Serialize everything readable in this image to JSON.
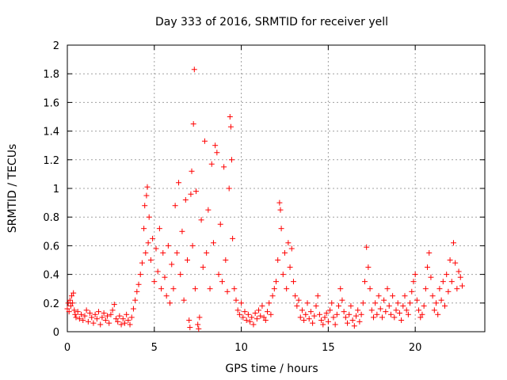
{
  "chart_data": {
    "type": "scatter",
    "title": "Day 333 of 2016, SRMTID for receiver yell",
    "xlabel": "GPS time / hours",
    "ylabel": "SRMTID / TECUs",
    "xlim": [
      0,
      24
    ],
    "ylim": [
      0,
      2
    ],
    "xticks": [
      0,
      5,
      10,
      15,
      20
    ],
    "xtick_labels": [
      "0",
      "5",
      "10",
      "15",
      "20"
    ],
    "yticks": [
      0,
      0.2,
      0.4,
      0.6,
      0.8,
      1,
      1.2,
      1.4,
      1.6,
      1.8,
      2
    ],
    "ytick_labels": [
      "0",
      "0.2",
      "0.4",
      "0.6",
      "0.8",
      "1",
      "1.2",
      "1.4",
      "1.6",
      "1.8",
      "2"
    ],
    "grid": true,
    "marker": "+",
    "color": "#ff0000",
    "series": [
      {
        "name": "SRMTID",
        "points": [
          [
            0.0,
            0.16
          ],
          [
            0.05,
            0.2
          ],
          [
            0.1,
            0.14
          ],
          [
            0.15,
            0.22
          ],
          [
            0.2,
            0.18
          ],
          [
            0.25,
            0.25
          ],
          [
            0.3,
            0.2
          ],
          [
            0.35,
            0.27
          ],
          [
            0.4,
            0.15
          ],
          [
            0.45,
            0.12
          ],
          [
            0.5,
            0.1
          ],
          [
            0.6,
            0.14
          ],
          [
            0.7,
            0.09
          ],
          [
            0.8,
            0.12
          ],
          [
            0.9,
            0.08
          ],
          [
            1.0,
            0.11
          ],
          [
            1.1,
            0.15
          ],
          [
            1.2,
            0.07
          ],
          [
            1.3,
            0.13
          ],
          [
            1.4,
            0.1
          ],
          [
            1.5,
            0.06
          ],
          [
            1.6,
            0.12
          ],
          [
            1.7,
            0.09
          ],
          [
            1.8,
            0.14
          ],
          [
            1.9,
            0.05
          ],
          [
            2.0,
            0.1
          ],
          [
            2.1,
            0.13
          ],
          [
            2.2,
            0.08
          ],
          [
            2.3,
            0.11
          ],
          [
            2.4,
            0.06
          ],
          [
            2.5,
            0.12
          ],
          [
            2.6,
            0.15
          ],
          [
            2.7,
            0.19
          ],
          [
            2.8,
            0.09
          ],
          [
            2.9,
            0.07
          ],
          [
            3.0,
            0.11
          ],
          [
            3.1,
            0.05
          ],
          [
            3.2,
            0.09
          ],
          [
            3.3,
            0.06
          ],
          [
            3.4,
            0.12
          ],
          [
            3.5,
            0.08
          ],
          [
            3.6,
            0.05
          ],
          [
            3.7,
            0.1
          ],
          [
            3.8,
            0.16
          ],
          [
            3.9,
            0.22
          ],
          [
            4.0,
            0.28
          ],
          [
            4.1,
            0.33
          ],
          [
            4.2,
            0.4
          ],
          [
            4.3,
            0.48
          ],
          [
            4.4,
            0.72
          ],
          [
            4.45,
            0.88
          ],
          [
            4.5,
            0.55
          ],
          [
            4.55,
            0.95
          ],
          [
            4.6,
            1.01
          ],
          [
            4.65,
            0.62
          ],
          [
            4.7,
            0.8
          ],
          [
            4.8,
            0.5
          ],
          [
            4.9,
            0.65
          ],
          [
            5.0,
            0.35
          ],
          [
            5.1,
            0.58
          ],
          [
            5.2,
            0.42
          ],
          [
            5.3,
            0.72
          ],
          [
            5.4,
            0.3
          ],
          [
            5.5,
            0.55
          ],
          [
            5.6,
            0.38
          ],
          [
            5.7,
            0.25
          ],
          [
            5.8,
            0.6
          ],
          [
            5.9,
            0.2
          ],
          [
            6.0,
            0.47
          ],
          [
            6.1,
            0.3
          ],
          [
            6.2,
            0.88
          ],
          [
            6.3,
            0.55
          ],
          [
            6.4,
            1.04
          ],
          [
            6.5,
            0.4
          ],
          [
            6.6,
            0.7
          ],
          [
            6.7,
            0.22
          ],
          [
            6.8,
            0.92
          ],
          [
            6.9,
            0.5
          ],
          [
            7.0,
            0.08
          ],
          [
            7.05,
            0.03
          ],
          [
            7.1,
            0.96
          ],
          [
            7.15,
            1.12
          ],
          [
            7.2,
            0.6
          ],
          [
            7.25,
            1.45
          ],
          [
            7.3,
            1.83
          ],
          [
            7.35,
            0.3
          ],
          [
            7.4,
            0.98
          ],
          [
            7.5,
            0.05
          ],
          [
            7.55,
            0.02
          ],
          [
            7.6,
            0.1
          ],
          [
            7.7,
            0.78
          ],
          [
            7.8,
            0.45
          ],
          [
            7.9,
            1.33
          ],
          [
            8.0,
            0.55
          ],
          [
            8.1,
            0.85
          ],
          [
            8.2,
            0.3
          ],
          [
            8.3,
            1.17
          ],
          [
            8.4,
            0.62
          ],
          [
            8.5,
            1.3
          ],
          [
            8.6,
            1.25
          ],
          [
            8.7,
            0.4
          ],
          [
            8.8,
            0.75
          ],
          [
            8.9,
            0.35
          ],
          [
            9.0,
            1.15
          ],
          [
            9.1,
            0.5
          ],
          [
            9.2,
            0.28
          ],
          [
            9.3,
            1.0
          ],
          [
            9.35,
            1.5
          ],
          [
            9.4,
            1.43
          ],
          [
            9.45,
            1.2
          ],
          [
            9.5,
            0.65
          ],
          [
            9.6,
            0.3
          ],
          [
            9.7,
            0.22
          ],
          [
            9.8,
            0.15
          ],
          [
            9.9,
            0.12
          ],
          [
            10.0,
            0.2
          ],
          [
            10.1,
            0.1
          ],
          [
            10.2,
            0.14
          ],
          [
            10.3,
            0.08
          ],
          [
            10.4,
            0.12
          ],
          [
            10.5,
            0.07
          ],
          [
            10.6,
            0.1
          ],
          [
            10.7,
            0.05
          ],
          [
            10.8,
            0.13
          ],
          [
            10.9,
            0.09
          ],
          [
            11.0,
            0.15
          ],
          [
            11.1,
            0.11
          ],
          [
            11.2,
            0.18
          ],
          [
            11.3,
            0.1
          ],
          [
            11.4,
            0.08
          ],
          [
            11.5,
            0.14
          ],
          [
            11.6,
            0.2
          ],
          [
            11.7,
            0.12
          ],
          [
            11.8,
            0.25
          ],
          [
            11.9,
            0.3
          ],
          [
            12.0,
            0.35
          ],
          [
            12.1,
            0.5
          ],
          [
            12.2,
            0.9
          ],
          [
            12.25,
            0.85
          ],
          [
            12.3,
            0.72
          ],
          [
            12.4,
            0.4
          ],
          [
            12.5,
            0.55
          ],
          [
            12.6,
            0.3
          ],
          [
            12.7,
            0.62
          ],
          [
            12.8,
            0.45
          ],
          [
            12.9,
            0.58
          ],
          [
            13.0,
            0.35
          ],
          [
            13.1,
            0.25
          ],
          [
            13.2,
            0.18
          ],
          [
            13.3,
            0.22
          ],
          [
            13.4,
            0.1
          ],
          [
            13.5,
            0.15
          ],
          [
            13.6,
            0.08
          ],
          [
            13.7,
            0.12
          ],
          [
            13.8,
            0.2
          ],
          [
            13.9,
            0.09
          ],
          [
            14.0,
            0.14
          ],
          [
            14.1,
            0.06
          ],
          [
            14.2,
            0.11
          ],
          [
            14.3,
            0.18
          ],
          [
            14.4,
            0.25
          ],
          [
            14.5,
            0.12
          ],
          [
            14.6,
            0.08
          ],
          [
            14.7,
            0.05
          ],
          [
            14.8,
            0.1
          ],
          [
            14.9,
            0.13
          ],
          [
            15.0,
            0.07
          ],
          [
            15.1,
            0.15
          ],
          [
            15.2,
            0.2
          ],
          [
            15.3,
            0.1
          ],
          [
            15.4,
            0.05
          ],
          [
            15.5,
            0.12
          ],
          [
            15.6,
            0.18
          ],
          [
            15.7,
            0.3
          ],
          [
            15.8,
            0.22
          ],
          [
            15.9,
            0.14
          ],
          [
            16.0,
            0.1
          ],
          [
            16.1,
            0.06
          ],
          [
            16.2,
            0.12
          ],
          [
            16.3,
            0.18
          ],
          [
            16.4,
            0.08
          ],
          [
            16.5,
            0.04
          ],
          [
            16.6,
            0.11
          ],
          [
            16.7,
            0.15
          ],
          [
            16.8,
            0.07
          ],
          [
            16.9,
            0.12
          ],
          [
            17.0,
            0.2
          ],
          [
            17.1,
            0.35
          ],
          [
            17.2,
            0.59
          ],
          [
            17.3,
            0.45
          ],
          [
            17.4,
            0.3
          ],
          [
            17.5,
            0.15
          ],
          [
            17.6,
            0.1
          ],
          [
            17.7,
            0.2
          ],
          [
            17.8,
            0.12
          ],
          [
            17.9,
            0.25
          ],
          [
            18.0,
            0.16
          ],
          [
            18.1,
            0.1
          ],
          [
            18.2,
            0.22
          ],
          [
            18.3,
            0.14
          ],
          [
            18.4,
            0.3
          ],
          [
            18.5,
            0.18
          ],
          [
            18.6,
            0.12
          ],
          [
            18.7,
            0.25
          ],
          [
            18.8,
            0.1
          ],
          [
            18.9,
            0.15
          ],
          [
            19.0,
            0.2
          ],
          [
            19.1,
            0.13
          ],
          [
            19.2,
            0.08
          ],
          [
            19.3,
            0.18
          ],
          [
            19.4,
            0.25
          ],
          [
            19.5,
            0.15
          ],
          [
            19.6,
            0.12
          ],
          [
            19.7,
            0.2
          ],
          [
            19.8,
            0.28
          ],
          [
            19.9,
            0.35
          ],
          [
            20.0,
            0.4
          ],
          [
            20.1,
            0.22
          ],
          [
            20.2,
            0.15
          ],
          [
            20.3,
            0.1
          ],
          [
            20.4,
            0.12
          ],
          [
            20.5,
            0.18
          ],
          [
            20.6,
            0.3
          ],
          [
            20.7,
            0.45
          ],
          [
            20.8,
            0.55
          ],
          [
            20.9,
            0.38
          ],
          [
            21.0,
            0.25
          ],
          [
            21.1,
            0.15
          ],
          [
            21.2,
            0.2
          ],
          [
            21.3,
            0.12
          ],
          [
            21.4,
            0.3
          ],
          [
            21.5,
            0.22
          ],
          [
            21.6,
            0.35
          ],
          [
            21.7,
            0.18
          ],
          [
            21.8,
            0.4
          ],
          [
            21.9,
            0.28
          ],
          [
            22.0,
            0.5
          ],
          [
            22.1,
            0.35
          ],
          [
            22.2,
            0.62
          ],
          [
            22.3,
            0.48
          ],
          [
            22.4,
            0.3
          ],
          [
            22.5,
            0.42
          ],
          [
            22.6,
            0.38
          ],
          [
            22.7,
            0.32
          ]
        ]
      }
    ]
  }
}
